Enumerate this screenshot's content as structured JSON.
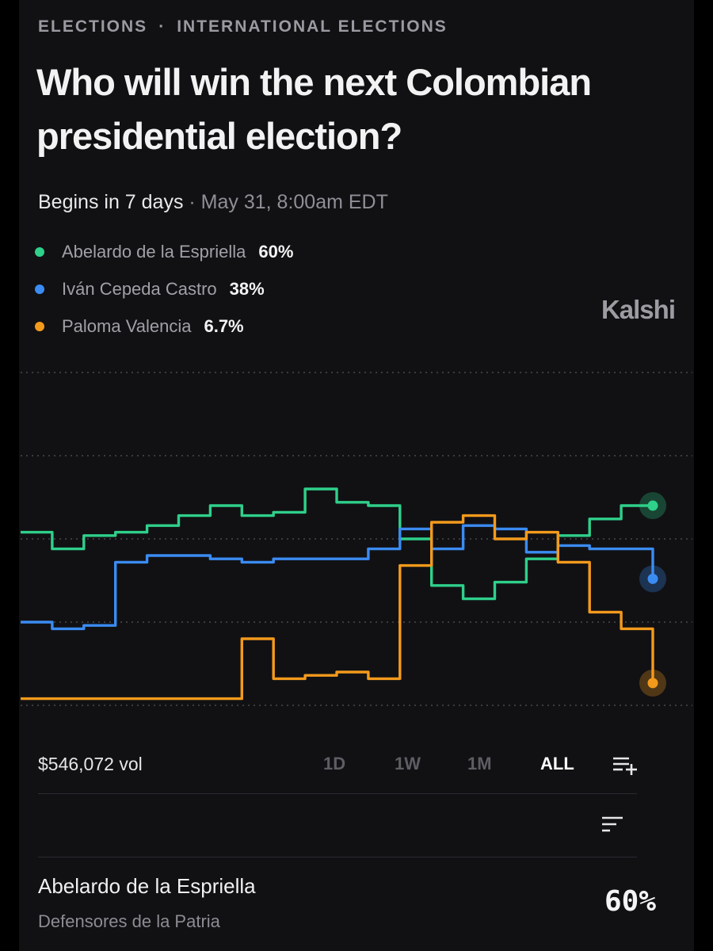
{
  "breadcrumb": {
    "category": "ELECTIONS",
    "separator": "·",
    "subcategory": "INTERNATIONAL ELECTIONS"
  },
  "market": {
    "title": "Who will win the next Colombian presidential election?",
    "begins": "Begins in 7 days",
    "begins_sep": " · ",
    "date": "May 31, 8:00am EDT",
    "brand": "Kalshi"
  },
  "legend": [
    {
      "name": "Abelardo de la Espriella",
      "value": "60%",
      "color": "#2fd08a"
    },
    {
      "name": "Iván Cepeda Castro",
      "value": "38%",
      "color": "#3b8cf2"
    },
    {
      "name": "Paloma Valencia",
      "value": "6.7%",
      "color": "#f39a1c"
    }
  ],
  "chart_data": {
    "type": "line",
    "ylim": [
      0,
      100
    ],
    "gridlines": [
      0,
      25,
      50,
      75,
      100
    ],
    "grid": "dotted",
    "x": [
      0,
      5,
      10,
      15,
      20,
      25,
      30,
      35,
      40,
      45,
      50,
      55,
      60,
      65,
      70,
      75,
      80,
      85,
      90,
      95,
      100
    ],
    "series": [
      {
        "name": "Abelardo de la Espriella",
        "color": "#2fd08a",
        "values": [
          52,
          47,
          51,
          52,
          54,
          57,
          60,
          57,
          58,
          65,
          61,
          60,
          50,
          36,
          32,
          37,
          44,
          51,
          56,
          60,
          60
        ]
      },
      {
        "name": "Iván Cepeda Castro",
        "color": "#3b8cf2",
        "values": [
          25,
          23,
          24,
          43,
          45,
          45,
          44,
          43,
          44,
          44,
          44,
          47,
          53,
          47,
          54,
          53,
          46,
          48,
          47,
          47,
          38
        ]
      },
      {
        "name": "Paloma Valencia",
        "color": "#f39a1c",
        "values": [
          2,
          2,
          2,
          2,
          2,
          2,
          2,
          20,
          8,
          9,
          10,
          8,
          42,
          55,
          57,
          50,
          52,
          43,
          28,
          23,
          6.7
        ]
      }
    ]
  },
  "footer": {
    "volume": "$546,072 vol",
    "ranges": [
      "1D",
      "1W",
      "1M",
      "ALL"
    ],
    "active_range": "ALL"
  },
  "outcomes": [
    {
      "name": "Abelardo de la Espriella",
      "party": "Defensores de la Patria",
      "value": "60%"
    }
  ],
  "icons": {
    "list_add": "list-add-icon",
    "sort": "sort-icon"
  }
}
